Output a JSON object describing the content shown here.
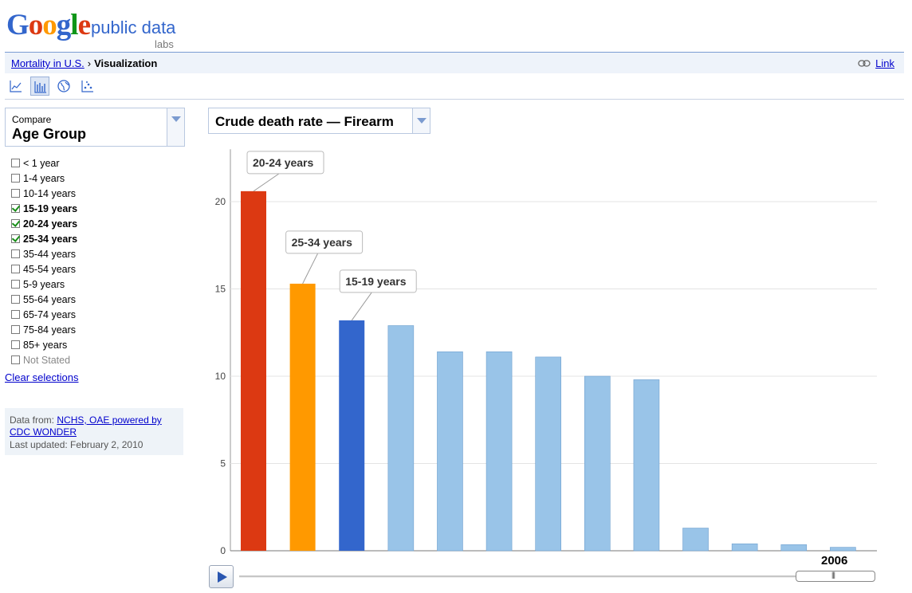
{
  "header": {
    "logo_text": "Google",
    "product": "public data",
    "sub": "labs"
  },
  "breadcrumb": {
    "link": "Mortality in U.S.",
    "separator": "›",
    "current": "Visualization",
    "share_link": "Link"
  },
  "toolbar": {
    "views": [
      "line-chart-icon",
      "bar-chart-icon",
      "map-icon",
      "bubble-chart-icon"
    ],
    "active": "bar-chart-icon"
  },
  "compare": {
    "label": "Compare",
    "value": "Age Group"
  },
  "age_groups": [
    {
      "label": "< 1 year",
      "checked": false
    },
    {
      "label": "1-4 years",
      "checked": false
    },
    {
      "label": "10-14 years",
      "checked": false
    },
    {
      "label": "15-19 years",
      "checked": true
    },
    {
      "label": "20-24 years",
      "checked": true
    },
    {
      "label": "25-34 years",
      "checked": true
    },
    {
      "label": "35-44 years",
      "checked": false
    },
    {
      "label": "45-54 years",
      "checked": false
    },
    {
      "label": "5-9 years",
      "checked": false
    },
    {
      "label": "55-64 years",
      "checked": false
    },
    {
      "label": "65-74 years",
      "checked": false
    },
    {
      "label": "75-84 years",
      "checked": false
    },
    {
      "label": "85+ years",
      "checked": false
    },
    {
      "label": "Not Stated",
      "checked": false,
      "disabled": true
    }
  ],
  "clear_label": "Clear selections",
  "source": {
    "prefix": "Data from:",
    "link": "NCHS, OAE powered by CDC WONDER",
    "updated": "Last updated: February 2, 2010"
  },
  "metric": {
    "value": "Crude death rate — Firearm"
  },
  "colors": {
    "highlight1": "#dc3912",
    "highlight2": "#ff9900",
    "highlight3": "#3366cc",
    "other": "#99c4e8"
  },
  "chart_data": {
    "type": "bar",
    "ylim": [
      0,
      23
    ],
    "yticks": [
      0,
      5,
      10,
      15,
      20
    ],
    "values": [
      20.6,
      15.3,
      13.2,
      12.9,
      11.4,
      11.4,
      11.1,
      10.0,
      9.8,
      1.3,
      0.4,
      0.35,
      0.2
    ],
    "highlights": [
      {
        "index": 0,
        "label": "20-24 years",
        "color": "#dc3912"
      },
      {
        "index": 1,
        "label": "25-34 years",
        "color": "#ff9900"
      },
      {
        "index": 2,
        "label": "15-19 years",
        "color": "#3366cc"
      }
    ],
    "other_color": "#99c4e8",
    "year": "2006"
  }
}
